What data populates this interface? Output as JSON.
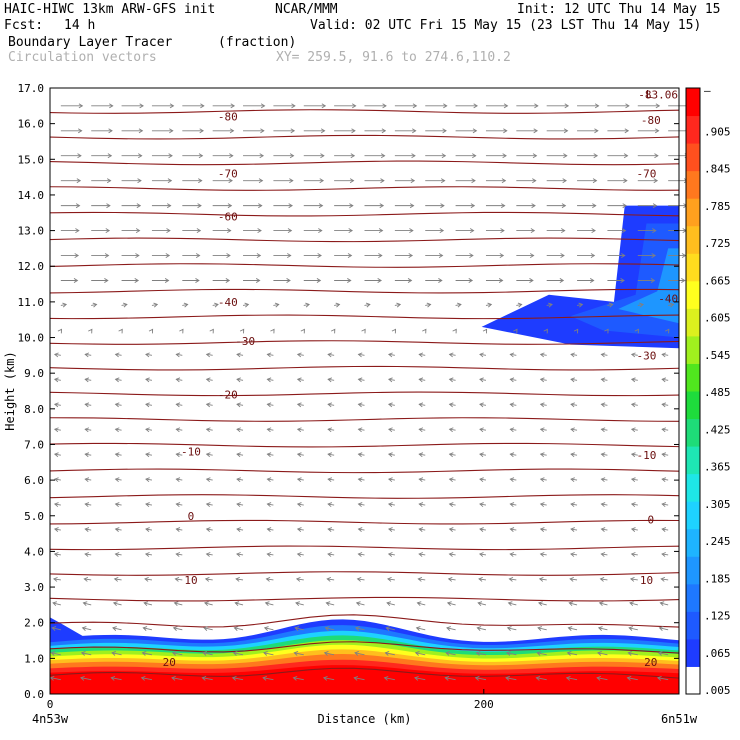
{
  "header": {
    "model": "HAIC-HIWC 13km ARW-GFS init",
    "org": "NCAR/MMM",
    "init": "Init: 12 UTC Thu 14 May 15",
    "fcst_label": "Fcst:",
    "fcst_value": "14 h",
    "valid": "Valid: 02 UTC Fri 15 May 15 (23 LST Thu 14 May 15)",
    "field": "Boundary Layer Tracer",
    "field_units": "(fraction)",
    "vectors": "Circulation vectors",
    "xy": "XY= 259.5, 91.6 to 274.6,110.2"
  },
  "chart_data": {
    "type": "cross-section",
    "xlabel": "Distance (km)",
    "ylabel": "Height (km)",
    "xlim": [
      0,
      290
    ],
    "ylim": [
      0,
      17
    ],
    "y_ticks": [
      "0.0",
      "1.0",
      "2.0",
      "3.0",
      "4.0",
      "5.0",
      "6.0",
      "7.0",
      "8.0",
      "9.0",
      "10.0",
      "11.0",
      "12.0",
      "13.0",
      "14.0",
      "15.0",
      "16.0",
      "17.0"
    ],
    "x_ticks": [
      {
        "value": 0,
        "label": "0"
      },
      {
        "value": 200,
        "label": "200"
      }
    ],
    "x_end_labels": [
      "4n53w",
      "6n51w"
    ],
    "colorbar": {
      "labels": [
        ".005",
        ".065",
        ".125",
        ".185",
        ".245",
        ".305",
        ".365",
        ".425",
        ".485",
        ".545",
        ".605",
        ".665",
        ".725",
        ".785",
        ".845",
        ".905"
      ],
      "top_label": "–",
      "colors": [
        "#ffffff",
        "#1e3cff",
        "#1e5aff",
        "#1e78ff",
        "#1e96ff",
        "#1eb4ff",
        "#1ed2ff",
        "#1ee6e6",
        "#1ee6b4",
        "#1edc78",
        "#1edc3c",
        "#50e61e",
        "#a0f01e",
        "#dcf01e",
        "#ffff1e",
        "#ffdc1e",
        "#ffbe1e",
        "#ffa01e",
        "#ff781e",
        "#ff501e",
        "#ff281e",
        "#ff0000"
      ]
    },
    "contour_labels": [
      {
        "text": "20",
        "x": 55,
        "y": 0.9
      },
      {
        "text": "20",
        "x": 277,
        "y": 0.9
      },
      {
        "text": "10",
        "x": 65,
        "y": 3.2
      },
      {
        "text": "10",
        "x": 275,
        "y": 3.2
      },
      {
        "text": "0",
        "x": 65,
        "y": 5.0
      },
      {
        "text": "0",
        "x": 277,
        "y": 4.9
      },
      {
        "text": "-10",
        "x": 65,
        "y": 6.8
      },
      {
        "text": "-10",
        "x": 275,
        "y": 6.7
      },
      {
        "text": "-20",
        "x": 82,
        "y": 8.4
      },
      {
        "text": "-30",
        "x": 90,
        "y": 9.9
      },
      {
        "text": "-30",
        "x": 275,
        "y": 9.5
      },
      {
        "text": "-40",
        "x": 82,
        "y": 11.0
      },
      {
        "text": "-40",
        "x": 285,
        "y": 11.1
      },
      {
        "text": "-60",
        "x": 82,
        "y": 13.4
      },
      {
        "text": "-70",
        "x": 82,
        "y": 14.6
      },
      {
        "text": "-70",
        "x": 275,
        "y": 14.6
      },
      {
        "text": "-80",
        "x": 82,
        "y": 16.2
      },
      {
        "text": "-80",
        "x": 277,
        "y": 16.1
      }
    ],
    "max_label": "-83.06",
    "corner_label": "L"
  }
}
